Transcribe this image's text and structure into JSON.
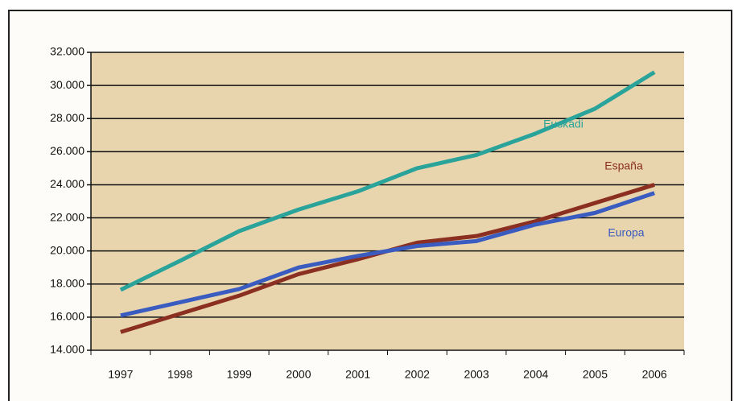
{
  "chart_data": {
    "type": "line",
    "categories": [
      "1997",
      "1998",
      "1999",
      "2000",
      "2001",
      "2002",
      "2003",
      "2004",
      "2005",
      "2006"
    ],
    "series": [
      {
        "name": "Euskadi",
        "color": "#2aa39a",
        "values": [
          17650,
          19400,
          21200,
          22500,
          23600,
          25000,
          25800,
          27100,
          28600,
          30800
        ]
      },
      {
        "name": "España",
        "color": "#8b2f22",
        "values": [
          15100,
          16200,
          17300,
          18600,
          19500,
          20500,
          20900,
          21800,
          22900,
          24000
        ]
      },
      {
        "name": "Europa",
        "color": "#3a5cc0",
        "values": [
          16100,
          16900,
          17700,
          19000,
          19700,
          20300,
          20600,
          21600,
          22300,
          23500
        ]
      }
    ],
    "ylim": [
      14000,
      32000
    ],
    "yticks": [
      {
        "value": 14000,
        "label": "14.000"
      },
      {
        "value": 16000,
        "label": "16.000"
      },
      {
        "value": 18000,
        "label": "18.000"
      },
      {
        "value": 20000,
        "label": "20.000"
      },
      {
        "value": 22000,
        "label": "22.000"
      },
      {
        "value": 24000,
        "label": "24.000"
      },
      {
        "value": 26000,
        "label": "26.000"
      },
      {
        "value": 28000,
        "label": "28.000"
      },
      {
        "value": 30000,
        "label": "30.000"
      },
      {
        "value": 32000,
        "label": "32.000"
      }
    ],
    "grid": true
  }
}
